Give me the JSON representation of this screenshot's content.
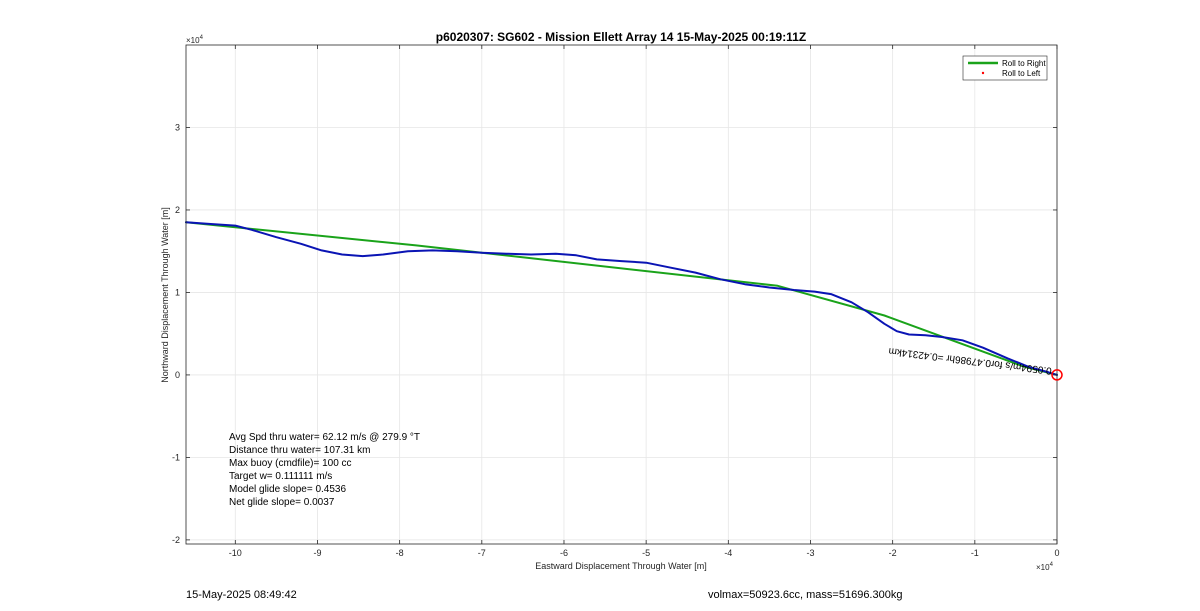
{
  "chart_data": {
    "type": "line",
    "title": "p6020307: SG602 - Mission Ellett Array 14 15-May-2025 00:19:11Z",
    "xlabel": "Eastward Displacement Through Water [m]",
    "ylabel": "Northward Displacement Through Water [m]",
    "x_exponent": "×10",
    "x_exponent_power": "4",
    "y_exponent": "×10",
    "y_exponent_power": "4",
    "xlim": [
      -10.6,
      0
    ],
    "ylim": [
      -2.05,
      4
    ],
    "xticks": [
      -10,
      -9,
      -8,
      -7,
      -6,
      -5,
      -4,
      -3,
      -2,
      -1,
      0
    ],
    "xtick_labels": [
      "-10",
      "-9",
      "-8",
      "-7",
      "-6",
      "-5",
      "-4",
      "-3",
      "-2",
      "-1",
      "0"
    ],
    "yticks": [
      -2,
      -1,
      0,
      1,
      2,
      3
    ],
    "ytick_labels": [
      "-2",
      "-1",
      "0",
      "1",
      "2",
      "3"
    ],
    "grid": true,
    "legend_position": "top-right",
    "series": [
      {
        "name": "Roll to Right",
        "color": "#1aa31a",
        "x": [
          -10.6,
          -7.8,
          -3.4,
          -2.1,
          -0.4,
          0
        ],
        "y": [
          1.85,
          1.57,
          1.08,
          0.72,
          0.1,
          0
        ]
      },
      {
        "name": "Roll to Left",
        "color": "#ff0000",
        "x": [],
        "y": []
      },
      {
        "name": "",
        "color": "#0a14b4",
        "x": [
          -10.6,
          -10.3,
          -10.0,
          -9.8,
          -9.5,
          -9.2,
          -8.95,
          -8.7,
          -8.45,
          -8.2,
          -7.9,
          -7.6,
          -7.3,
          -7.0,
          -6.7,
          -6.4,
          -6.1,
          -5.85,
          -5.6,
          -5.3,
          -5.0,
          -4.7,
          -4.4,
          -4.1,
          -3.8,
          -3.5,
          -3.2,
          -2.95,
          -2.75,
          -2.5,
          -2.3,
          -2.1,
          -1.95,
          -1.8,
          -1.6,
          -1.4,
          -1.15,
          -0.9,
          -0.6,
          -0.35,
          -0.1,
          0
        ],
        "y": [
          1.85,
          1.83,
          1.81,
          1.76,
          1.67,
          1.59,
          1.51,
          1.46,
          1.44,
          1.46,
          1.5,
          1.51,
          1.5,
          1.48,
          1.47,
          1.46,
          1.47,
          1.45,
          1.4,
          1.38,
          1.36,
          1.3,
          1.24,
          1.16,
          1.1,
          1.06,
          1.03,
          1.01,
          0.98,
          0.88,
          0.76,
          0.62,
          0.53,
          0.49,
          0.48,
          0.46,
          0.42,
          0.33,
          0.2,
          0.1,
          0.03,
          0
        ]
      }
    ],
    "end_marker": {
      "x": 0,
      "y": 0,
      "color": "#ff0000"
    },
    "annotation": "0.0594m/s for0.47986hr =0.42314km",
    "annotation_rotation_deg": 187,
    "stats": [
      "Avg Spd thru water= 62.12 m/s @ 279.9 °T",
      "Distance thru water= 107.31 km",
      "Max buoy (cmdfile)= 100 cc",
      "Target w= 0.111111 m/s",
      "Model glide slope= 0.4536",
      "Net glide slope= 0.0037"
    ]
  },
  "footer": {
    "timestamp": "15-May-2025 08:49:42",
    "vol_mass": "volmax=50923.6cc, mass=51696.300kg"
  }
}
